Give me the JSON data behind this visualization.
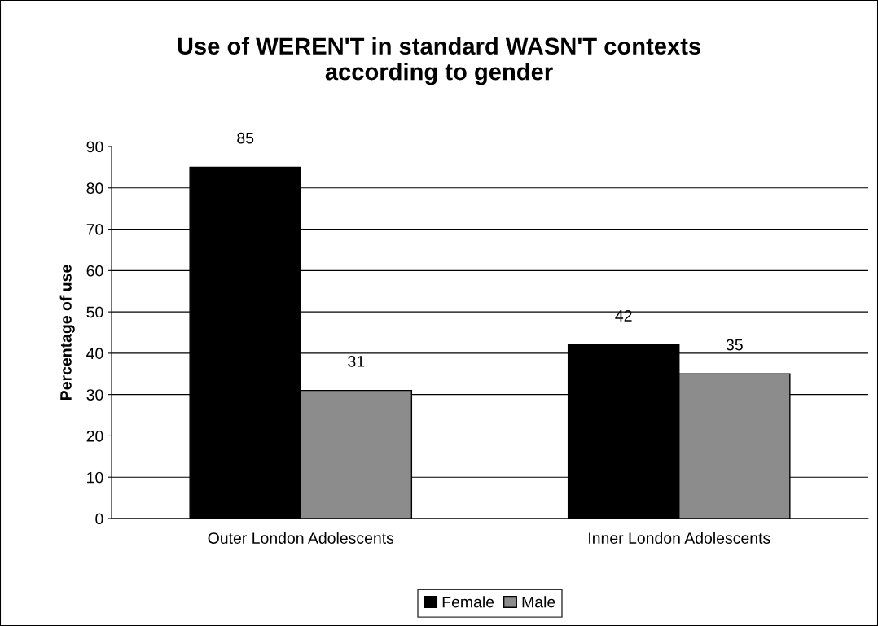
{
  "chart_data": {
    "type": "bar",
    "title": "Use of WEREN'T in standard WASN'T contexts\naccording to gender",
    "ylabel": "Percentage of use",
    "categories": [
      "Outer London Adolescents",
      "Inner London Adolescents"
    ],
    "series": [
      {
        "name": "Female",
        "color": "#000000",
        "values": [
          85,
          42
        ]
      },
      {
        "name": "Male",
        "color": "#8c8c8c",
        "values": [
          31,
          35
        ]
      }
    ],
    "ylim": [
      0,
      90
    ],
    "yticks": [
      0,
      10,
      20,
      30,
      40,
      50,
      60,
      70,
      80,
      90
    ],
    "grid": "y",
    "legend": "bottom",
    "data_labels": true
  }
}
